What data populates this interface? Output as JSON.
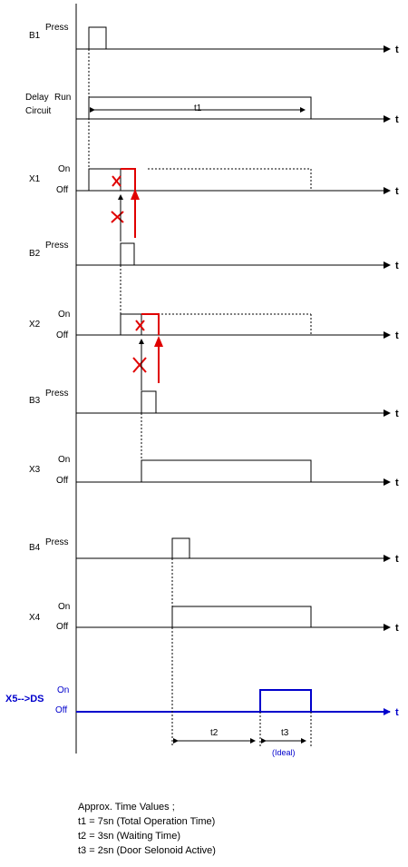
{
  "colors": {
    "signal": "#000000",
    "x5": "#0000cc",
    "block": "#e00000"
  },
  "axis_label": "t",
  "rows": [
    {
      "id": "b1",
      "label": "B1",
      "state_labels": [
        "Press"
      ]
    },
    {
      "id": "delay",
      "label_lines": [
        "Delay",
        "Circuit"
      ],
      "state_labels": [
        "Run"
      ]
    },
    {
      "id": "x1",
      "label": "X1",
      "state_labels": [
        "On",
        "Off"
      ]
    },
    {
      "id": "b2",
      "label": "B2",
      "state_labels": [
        "Press"
      ]
    },
    {
      "id": "x2",
      "label": "X2",
      "state_labels": [
        "On",
        "Off"
      ]
    },
    {
      "id": "b3",
      "label": "B3",
      "state_labels": [
        "Press"
      ]
    },
    {
      "id": "x3",
      "label": "X3",
      "state_labels": [
        "On",
        "Off"
      ]
    },
    {
      "id": "b4",
      "label": "B4",
      "state_labels": [
        "Press"
      ]
    },
    {
      "id": "x4",
      "label": "X4",
      "state_labels": [
        "On",
        "Off"
      ]
    },
    {
      "id": "x5",
      "label": "X5-->DS",
      "state_labels": [
        "On",
        "Off"
      ]
    }
  ],
  "intervals": {
    "t1": "t1",
    "t2": "t2",
    "t3": "t3",
    "t3_note": "(Ideal)"
  },
  "notes": {
    "heading": "Approx. Time Values ;",
    "lines": [
      "t1 = 7sn (Total Operation Time)",
      "t2 = 3sn (Waiting Time)",
      "t3 = 2sn (Door Selonoid Active)"
    ]
  }
}
